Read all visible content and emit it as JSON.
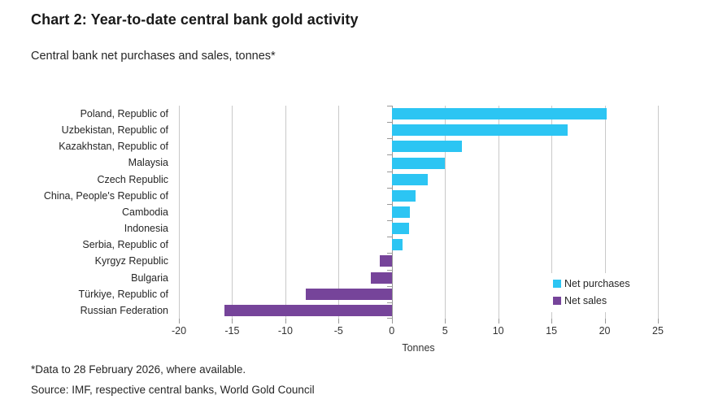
{
  "header": {
    "title": "Chart 2: Year-to-date central bank gold activity",
    "subtitle": "Central bank net purchases and sales, tonnes*"
  },
  "footer": {
    "footnote": "*Data to 28 February 2026, where available.",
    "source": "Source: IMF, respective central banks, World Gold Council"
  },
  "legend": {
    "items": [
      {
        "label": "Net purchases",
        "color": "#2cc5f3"
      },
      {
        "label": "Net sales",
        "color": "#76449a"
      }
    ]
  },
  "chart_data": {
    "type": "bar",
    "orientation": "horizontal",
    "title": "Chart 2: Year-to-date central bank gold activity",
    "subtitle": "Central bank net purchases and sales, tonnes*",
    "xlabel": "Tonnes",
    "xlim": [
      -20,
      25
    ],
    "xticks": [
      -20,
      -15,
      -10,
      -5,
      0,
      5,
      10,
      15,
      20,
      25
    ],
    "grid": true,
    "legend_position": "inside right",
    "series": [
      {
        "name": "Net purchases",
        "color": "#2cc5f3"
      },
      {
        "name": "Net sales",
        "color": "#76449a"
      }
    ],
    "points": [
      {
        "category": "Poland, Republic of",
        "value": 20.2,
        "series": "Net purchases"
      },
      {
        "category": "Uzbekistan, Republic of",
        "value": 16.5,
        "series": "Net purchases"
      },
      {
        "category": "Kazakhstan, Republic of",
        "value": 6.6,
        "series": "Net purchases"
      },
      {
        "category": "Malaysia",
        "value": 5.0,
        "series": "Net purchases"
      },
      {
        "category": "Czech Republic",
        "value": 3.4,
        "series": "Net purchases"
      },
      {
        "category": "China, People's Republic of",
        "value": 2.2,
        "series": "Net purchases"
      },
      {
        "category": "Cambodia",
        "value": 1.7,
        "series": "Net purchases"
      },
      {
        "category": "Indonesia",
        "value": 1.6,
        "series": "Net purchases"
      },
      {
        "category": "Serbia, Republic of",
        "value": 1.0,
        "series": "Net purchases"
      },
      {
        "category": "Kyrgyz Republic",
        "value": -1.1,
        "series": "Net sales"
      },
      {
        "category": "Bulgaria",
        "value": -2.0,
        "series": "Net sales"
      },
      {
        "category": "Türkiye, Republic of",
        "value": -8.1,
        "series": "Net sales"
      },
      {
        "category": "Russian Federation",
        "value": -15.7,
        "series": "Net sales"
      }
    ]
  }
}
